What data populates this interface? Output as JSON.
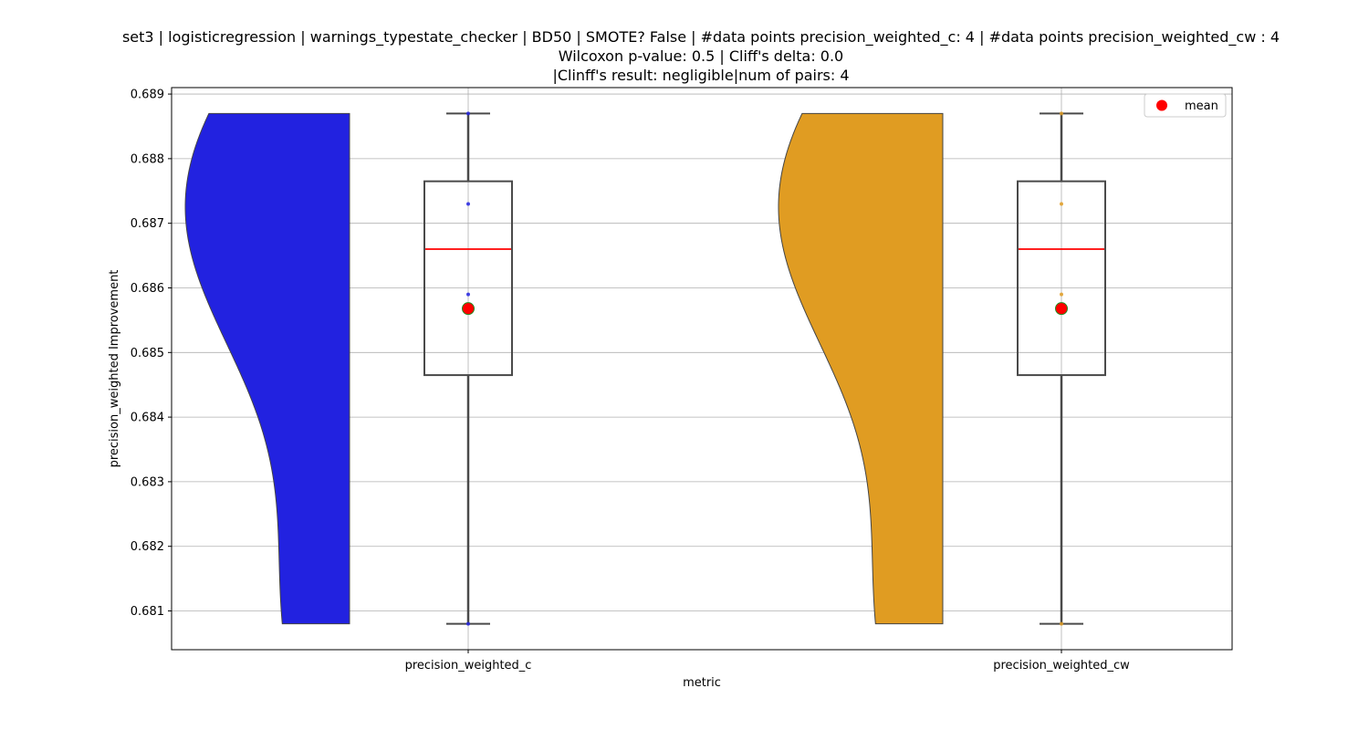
{
  "chart_data": {
    "type": "violin-box",
    "title_lines": [
      "set3 | logisticregression | warnings_typestate_checker | BD50 | SMOTE? False | #data points precision_weighted_c: 4 | #data points precision_weighted_cw : 4",
      "Wilcoxon p-value: 0.5 | Cliff's delta: 0.0",
      "|Clinff's result: negligible|num of pairs: 4"
    ],
    "xlabel": "metric",
    "ylabel": "precision_weighted Improvement",
    "categories": [
      "precision_weighted_c",
      "precision_weighted_cw"
    ],
    "ylim": [
      0.6804,
      0.6891
    ],
    "yticks": [
      0.681,
      0.682,
      0.683,
      0.684,
      0.685,
      0.686,
      0.687,
      0.688,
      0.689
    ],
    "ytick_labels": [
      "0.681",
      "0.682",
      "0.683",
      "0.684",
      "0.685",
      "0.686",
      "0.687",
      "0.688",
      "0.689"
    ],
    "grid": true,
    "legend": {
      "placement": "top-right",
      "entries": [
        "mean"
      ]
    },
    "series": [
      {
        "category": "precision_weighted_c",
        "color": "#2222e0",
        "points": [
          0.6808,
          0.6859,
          0.6873,
          0.6887
        ],
        "box": {
          "min": 0.6808,
          "q1": 0.68465,
          "median": 0.6866,
          "q3": 0.68765,
          "max": 0.6887
        },
        "mean": 0.68568
      },
      {
        "category": "precision_weighted_cw",
        "color": "#e09c22",
        "points": [
          0.6808,
          0.6859,
          0.6873,
          0.6887
        ],
        "box": {
          "min": 0.6808,
          "q1": 0.68465,
          "median": 0.6866,
          "q3": 0.68765,
          "max": 0.6887
        },
        "mean": 0.68568
      }
    ],
    "colors": {
      "median": "#ff0000",
      "mean_fill": "#ff0000",
      "mean_edge": "#228b22",
      "box_edge": "#4a4a4a",
      "grid": "#b0b0b0"
    }
  }
}
